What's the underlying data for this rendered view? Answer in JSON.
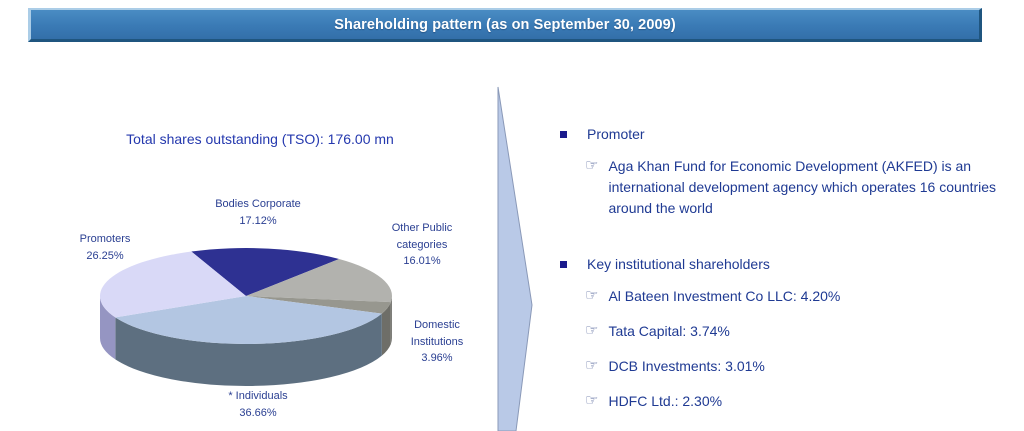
{
  "header": {
    "title": "Shareholding pattern (as on September 30, 2009)"
  },
  "chart_data": {
    "type": "pie",
    "title": "Total shares outstanding (TSO): 176.00 mn",
    "style": "3d-pie",
    "unit": "%",
    "start_angle_deg": -22,
    "direction": "clockwise",
    "total": 100.0,
    "slices": [
      {
        "label": "Bodies Corporate",
        "value": 17.12,
        "pct_label": "17.12%",
        "color": "#2e3192",
        "side_color": "#23266e"
      },
      {
        "label": "Other Public categories",
        "value": 16.01,
        "pct_label": "16.01%",
        "color": "#b2b2ae",
        "side_color": "#7e7e7a"
      },
      {
        "label": "Domestic Institutions",
        "value": 3.96,
        "pct_label": "3.96%",
        "color": "#97978f",
        "side_color": "#6e6e68"
      },
      {
        "label": "* Individuals",
        "value": 36.66,
        "pct_label": "36.66%",
        "color": "#b3c6e2",
        "side_color": "#5d6f80"
      },
      {
        "label": "Promoters",
        "value": 26.25,
        "pct_label": "26.25%",
        "color": "#d9d9f7",
        "side_color": "#9595c2"
      }
    ]
  },
  "right_panel": {
    "sub_bullet_glyph": "☞",
    "sections": [
      {
        "heading": "Promoter",
        "items": [
          "Aga Khan Fund for Economic Development (AKFED) is an international development agency which operates 16 countries around the world"
        ]
      },
      {
        "heading": "Key institutional shareholders",
        "items": [
          "Al Bateen Investment Co LLC: 4.20%",
          "Tata Capital: 3.74%",
          "DCB Investments: 3.01%",
          "HDFC Ltd.: 2.30%"
        ]
      }
    ]
  },
  "colors": {
    "header_fill": "#3a7ab5",
    "header_bevel_light": "#abcde7",
    "header_bevel_dark": "#1f557f",
    "header_text": "#ffffff",
    "body_text": "#1f3a93",
    "chart_title_text": "#2438ae",
    "pie_label_text": "#2a3f92",
    "arrow_fill": "#b9c9e7",
    "arrow_edge": "#8a99b8"
  }
}
